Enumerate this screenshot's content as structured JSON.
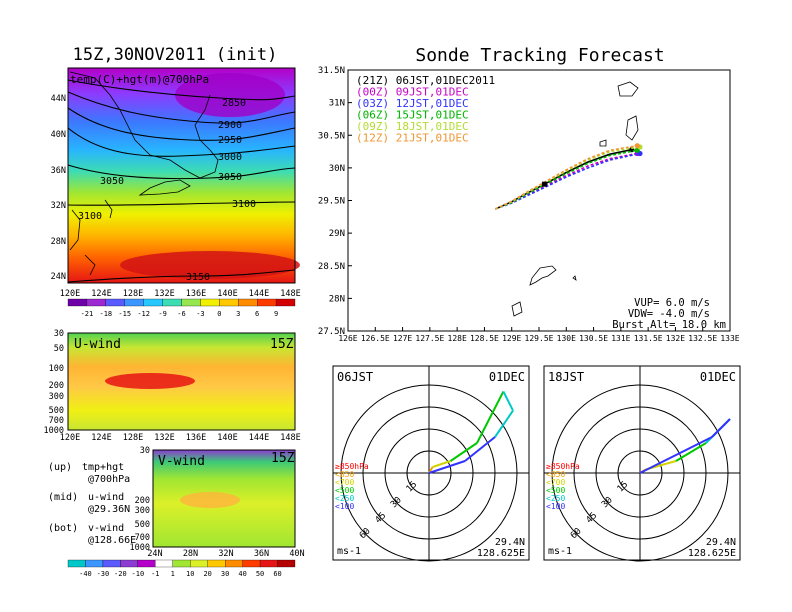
{
  "left": {
    "title": "15Z,30NOV2011 (init)",
    "map_label": "temp(C)+hgt(m)@700hPa",
    "lon_ticks": [
      "120E",
      "124E",
      "128E",
      "132E",
      "136E",
      "140E",
      "144E",
      "148E"
    ],
    "lat_ticks": [
      "44N",
      "40N",
      "36N",
      "32N",
      "28N",
      "24N"
    ],
    "hgt_labels": [
      "2850",
      "2900",
      "2950",
      "3000",
      "3050",
      "3050",
      "3100",
      "3100",
      "3150"
    ],
    "temp_colorbar": [
      "-21",
      "-18",
      "-15",
      "-12",
      "-9",
      "-6",
      "-3",
      "0",
      "3",
      "6",
      "9"
    ],
    "uwind_label": "U-wind",
    "uwind_time": "15Z",
    "vwind_label": "V-wind",
    "vwind_time": "15Z",
    "p_ticks": [
      "30",
      "50",
      "100",
      "200",
      "300",
      "500",
      "700",
      "1000"
    ],
    "lat_ticks_bottom": [
      "24N",
      "28N",
      "32N",
      "36N",
      "40N"
    ],
    "notes": [
      {
        "tag": "(up)",
        "text": "tmp+hgt",
        "sub": "@700hPa"
      },
      {
        "tag": "(mid)",
        "text": "u-wind",
        "sub": "@29.36N"
      },
      {
        "tag": "(bot)",
        "text": "v-wind",
        "sub": "@128.66E"
      }
    ],
    "wind_colorbar": [
      "-40",
      "-30",
      "-20",
      "-10",
      "-1",
      "1",
      "10",
      "20",
      "30",
      "40",
      "50",
      "60"
    ]
  },
  "main": {
    "title": "Sonde Tracking Forecast",
    "lat_ticks": [
      "31.5N",
      "31N",
      "30.5N",
      "30N",
      "29.5N",
      "29N",
      "28.5N",
      "28N",
      "27.5N"
    ],
    "lon_ticks": [
      "126E",
      "126.5E",
      "127E",
      "127.5E",
      "128E",
      "128.5E",
      "129E",
      "129.5E",
      "130E",
      "130.5E",
      "131E",
      "131.5E",
      "132E",
      "132.5E",
      "133E"
    ],
    "vup": "VUP=  6.0  m/s",
    "vdw": "VDW= -4.0  m/s",
    "burst": "Burst Alt=  18.0  km",
    "colors": {
      "21Z": "#000000",
      "00Z": "#c800c8",
      "03Z": "#3232ff",
      "06Z": "#00b400",
      "09Z": "#b4dc32",
      "12Z": "#f09632"
    }
  },
  "chart_data": {
    "type": "line",
    "title": "Sonde Tracking Forecast",
    "xlim": [
      126,
      133
    ],
    "ylim": [
      27.5,
      31.5
    ],
    "series": [
      {
        "name": "(21Z) 06JST,01DEC2011",
        "color": "#000000",
        "x": [
          128.7,
          129.0,
          129.3,
          129.6,
          130.0,
          130.4,
          130.8,
          131.2
        ],
        "y": [
          29.37,
          29.48,
          29.62,
          29.75,
          29.93,
          30.09,
          30.21,
          30.28
        ]
      },
      {
        "name": "(00Z) 09JST,01DEC",
        "color": "#c800c8",
        "x": [
          128.7,
          129.0,
          129.3,
          129.6,
          130.0,
          130.4,
          130.8,
          131.3
        ],
        "y": [
          29.37,
          29.47,
          29.6,
          29.72,
          29.88,
          30.03,
          30.14,
          30.22
        ]
      },
      {
        "name": "(03Z) 12JST,01DEC",
        "color": "#3232ff",
        "x": [
          128.7,
          129.0,
          129.3,
          129.6,
          130.0,
          130.4,
          130.8,
          131.35
        ],
        "y": [
          29.37,
          29.46,
          29.58,
          29.7,
          29.86,
          30.0,
          30.12,
          30.22
        ]
      },
      {
        "name": "(06Z) 15JST,01DEC",
        "color": "#00b400",
        "x": [
          128.7,
          129.0,
          129.3,
          129.6,
          130.0,
          130.4,
          130.8,
          131.3
        ],
        "y": [
          29.37,
          29.47,
          29.61,
          29.74,
          29.91,
          30.07,
          30.19,
          30.27
        ]
      },
      {
        "name": "(09Z) 18JST,01DEC",
        "color": "#b4dc32",
        "x": [
          128.7,
          129.0,
          129.3,
          129.6,
          130.0,
          130.4,
          130.8,
          131.35
        ],
        "y": [
          29.37,
          29.48,
          29.63,
          29.77,
          29.95,
          30.12,
          30.25,
          30.32
        ]
      },
      {
        "name": "(12Z) 21JST,01DEC",
        "color": "#f09632",
        "x": [
          128.7,
          129.0,
          129.3,
          129.6,
          130.0,
          130.4,
          130.8,
          131.3
        ],
        "y": [
          29.37,
          29.49,
          29.64,
          29.78,
          29.97,
          30.14,
          30.27,
          30.34
        ]
      }
    ]
  },
  "hodographs": [
    {
      "time": "06JST",
      "date": "01DEC",
      "lat": "29.4N",
      "lon": "128.625E",
      "unit": "ms-1",
      "rings": [
        "15",
        "30",
        "45",
        "60"
      ],
      "legend": [
        {
          "label": "≥850hPa",
          "color": "#ff0000"
        },
        {
          "label": "<850",
          "color": "#f0a000"
        },
        {
          "label": "<700",
          "color": "#d2d200"
        },
        {
          "label": "<500",
          "color": "#00c800"
        },
        {
          "label": "<250",
          "color": "#00c8c8"
        },
        {
          "label": "<100",
          "color": "#3232ff"
        }
      ]
    },
    {
      "time": "18JST",
      "date": "01DEC",
      "lat": "29.4N",
      "lon": "128.625E",
      "unit": "ms-1",
      "rings": [
        "15",
        "30",
        "45",
        "60"
      ],
      "legend": [
        {
          "label": "≥850hPa",
          "color": "#ff0000"
        },
        {
          "label": "<850",
          "color": "#f0a000"
        },
        {
          "label": "<700",
          "color": "#d2d200"
        },
        {
          "label": "<500",
          "color": "#00c800"
        },
        {
          "label": "<250",
          "color": "#00c8c8"
        },
        {
          "label": "<100",
          "color": "#3232ff"
        }
      ]
    }
  ]
}
